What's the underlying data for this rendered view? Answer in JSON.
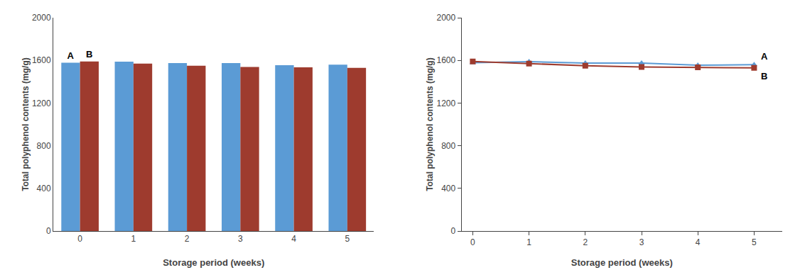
{
  "chart_data": [
    {
      "type": "bar",
      "xlabel": "Storage period (weeks)",
      "ylabel": "Total polyphenol contents (mg/g)",
      "categories": [
        "0",
        "1",
        "2",
        "3",
        "4",
        "5"
      ],
      "series": [
        {
          "name": "A",
          "color": "#5b9bd5",
          "values": [
            1578,
            1588,
            1575,
            1575,
            1555,
            1560
          ]
        },
        {
          "name": "B",
          "color": "#9e3b2e",
          "values": [
            1590,
            1570,
            1550,
            1538,
            1535,
            1530
          ]
        }
      ],
      "ylim": [
        0,
        2000
      ],
      "yticks": [
        0,
        400,
        800,
        1200,
        1600,
        2000
      ],
      "grid": false
    },
    {
      "type": "line",
      "xlabel": "Storage period (weeks)",
      "ylabel": "Total polyphenol contents (mg/g)",
      "x": [
        0,
        1,
        2,
        3,
        4,
        5
      ],
      "series": [
        {
          "name": "A",
          "color": "#5b9bd5",
          "marker": "triangle",
          "values": [
            1578,
            1588,
            1575,
            1575,
            1555,
            1560
          ]
        },
        {
          "name": "B",
          "color": "#9e3b2e",
          "marker": "square",
          "values": [
            1590,
            1570,
            1550,
            1538,
            1535,
            1530
          ]
        }
      ],
      "xlim": [
        -0.2,
        5.5
      ],
      "xticks": [
        0,
        1,
        2,
        3,
        4,
        5
      ],
      "ylim": [
        0,
        2000
      ],
      "yticks": [
        0,
        400,
        800,
        1200,
        1600,
        2000
      ],
      "grid": false
    }
  ]
}
